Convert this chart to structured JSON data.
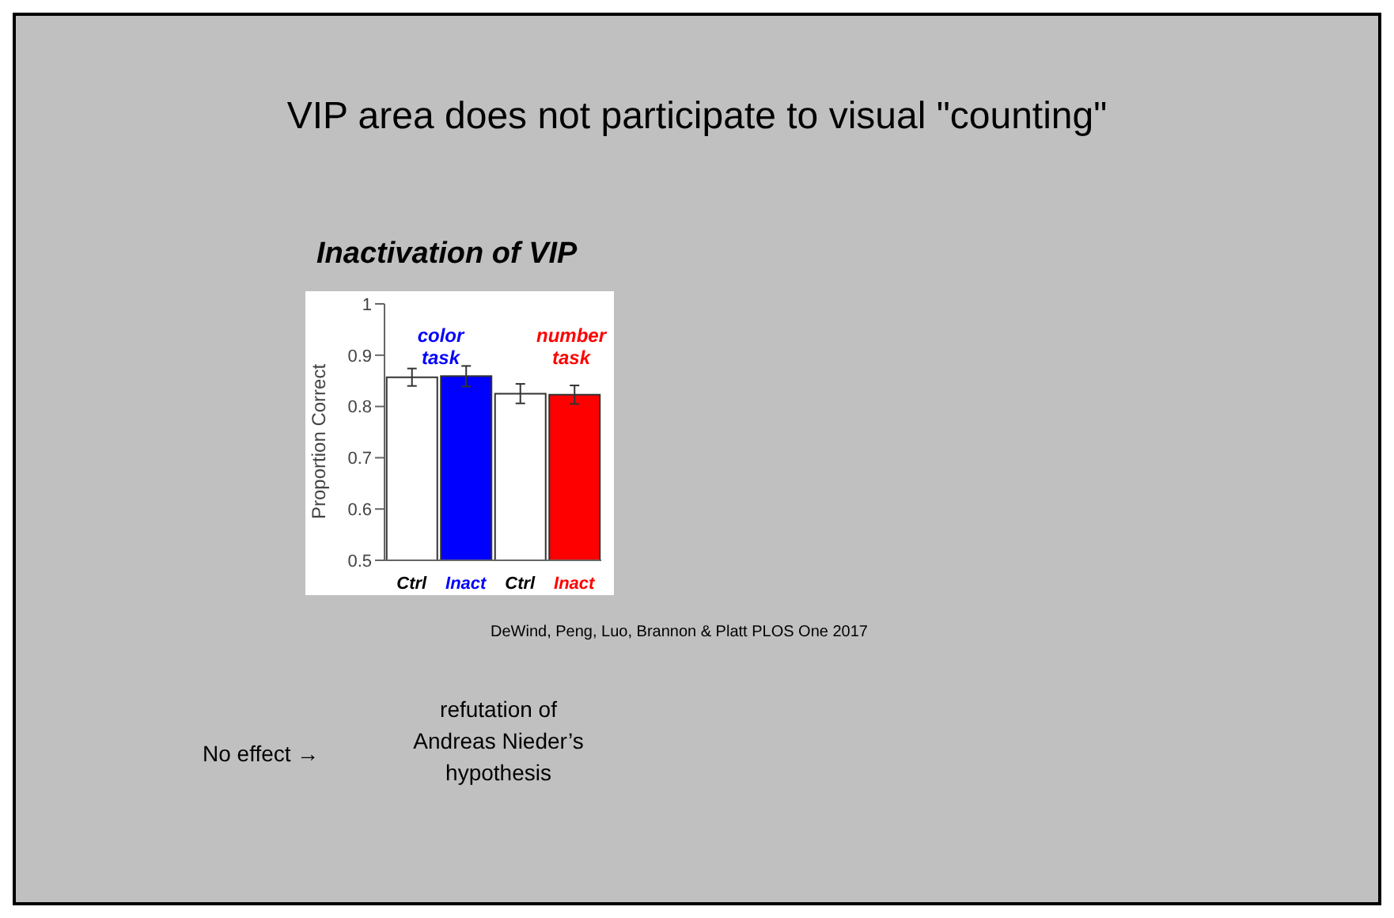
{
  "chart_data": {
    "type": "bar",
    "title": "VIP area does not participate to visual \"counting\"",
    "subtitle": "Inactivation of VIP",
    "ylabel": "Proportion Correct",
    "categories": [
      "Ctrl",
      "Inact",
      "Ctrl",
      "Inact"
    ],
    "values": [
      0.857,
      0.859,
      0.825,
      0.823
    ],
    "errors": [
      0.017,
      0.02,
      0.019,
      0.018
    ],
    "colors": [
      "#ffffff",
      "#0000ff",
      "#ffffff",
      "#ff0000"
    ],
    "ylim": [
      0.5,
      1
    ],
    "yticks": [
      0.5,
      0.6,
      0.7,
      0.8,
      0.9,
      1
    ],
    "grid": false,
    "annotations": [
      "color task",
      "number task",
      "DeWind, Peng, Luo, Brannon & Platt PLOS One 2017",
      "No effect →",
      "refutation of Andreas Nieder’s hypothesis"
    ]
  }
}
